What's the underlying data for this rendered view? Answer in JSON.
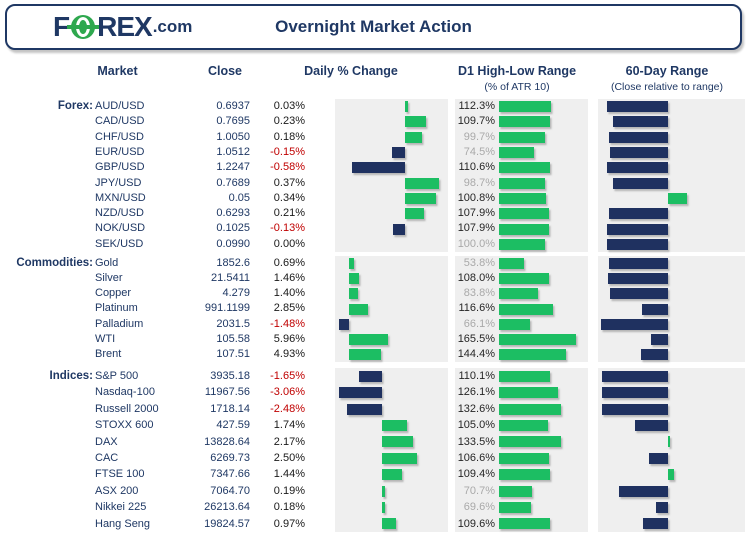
{
  "header": {
    "logo_f": "F",
    "logo_rex": "REX",
    "logo_tld": ".com",
    "title": "Overnight Market Action"
  },
  "columns": {
    "market": "Market",
    "close": "Close",
    "daily_change": "Daily % Change",
    "d1_range": "D1 High-Low Range",
    "d1_sub": "(% of ATR 10)",
    "sixty_range": "60-Day Range",
    "sixty_sub": "(Close relative to range)"
  },
  "colors": {
    "navy": "#1F3864",
    "bar_navy": "#1F3160",
    "green": "#1CBE63",
    "logo_green": "#2EA84E",
    "red": "#C00000",
    "gray_text": "#A9A9A9",
    "dark_text": "#262626",
    "panel": "#EFEFEF",
    "text_dark": "#1A1A1A"
  },
  "chart_data": {
    "type": "table",
    "title": "Overnight Market Action",
    "legend_position": "none",
    "grid": false,
    "d1_axis": {
      "min": 0,
      "max": 185
    },
    "sixty_axis": {
      "min": -1.05,
      "max": 1.17
    },
    "sections": [
      {
        "label": "Forex:",
        "daily_axis": {
          "min": -0.77,
          "max": 0.47
        },
        "rows": [
          {
            "market": "AUD/USD",
            "close": "0.6937",
            "change": 0.03,
            "change_label": "0.03%",
            "d1": 112.3,
            "d1_label": "112.3%",
            "range60": -0.92
          },
          {
            "market": "CAD/USD",
            "close": "0.7695",
            "change": 0.23,
            "change_label": "0.23%",
            "d1": 109.7,
            "d1_label": "109.7%",
            "range60": -0.82
          },
          {
            "market": "CHF/USD",
            "close": "1.0050",
            "change": 0.18,
            "change_label": "0.18%",
            "d1": 99.7,
            "d1_label": "99.7%",
            "range60": -0.88
          },
          {
            "market": "EUR/USD",
            "close": "1.0512",
            "change": -0.15,
            "change_label": "-0.15%",
            "d1": 74.5,
            "d1_label": "74.5%",
            "range60": -0.87
          },
          {
            "market": "GBP/USD",
            "close": "1.2247",
            "change": -0.58,
            "change_label": "-0.58%",
            "d1": 110.6,
            "d1_label": "110.6%",
            "range60": -0.91
          },
          {
            "market": "JPY/USD",
            "close": "0.7689",
            "change": 0.37,
            "change_label": "0.37%",
            "d1": 98.7,
            "d1_label": "98.7%",
            "range60": -0.83
          },
          {
            "market": "MXN/USD",
            "close": "0.05",
            "change": 0.34,
            "change_label": "0.34%",
            "d1": 100.8,
            "d1_label": "100.8%",
            "range60": 0.29
          },
          {
            "market": "NZD/USD",
            "close": "0.6293",
            "change": 0.21,
            "change_label": "0.21%",
            "d1": 107.9,
            "d1_label": "107.9%",
            "range60": -0.89
          },
          {
            "market": "NOK/USD",
            "close": "0.1025",
            "change": -0.13,
            "change_label": "-0.13%",
            "d1": 107.9,
            "d1_label": "107.9%",
            "range60": -0.92
          },
          {
            "market": "SEK/USD",
            "close": "0.0990",
            "change": 0.0,
            "change_label": "0.00%",
            "d1": 100.0,
            "d1_label": "100.0%",
            "range60": -0.92
          }
        ]
      },
      {
        "label": "Commodities:",
        "daily_axis": {
          "min": -2.14,
          "max": 15.1
        },
        "rows": [
          {
            "market": "Gold",
            "close": "1852.6",
            "change": 0.69,
            "change_label": "0.69%",
            "d1": 53.8,
            "d1_label": "53.8%",
            "range60": -0.89
          },
          {
            "market": "Silver",
            "close": "21.5411",
            "change": 1.46,
            "change_label": "1.46%",
            "d1": 108.0,
            "d1_label": "108.0%",
            "range60": -0.9
          },
          {
            "market": "Copper",
            "close": "4.279",
            "change": 1.4,
            "change_label": "1.40%",
            "d1": 83.8,
            "d1_label": "83.8%",
            "range60": -0.87
          },
          {
            "market": "Platinum",
            "close": "991.1199",
            "change": 2.85,
            "change_label": "2.85%",
            "d1": 116.6,
            "d1_label": "116.6%",
            "range60": -0.39
          },
          {
            "market": "Palladium",
            "close": "2031.5",
            "change": -1.48,
            "change_label": "-1.48%",
            "d1": 66.1,
            "d1_label": "66.1%",
            "range60": -1.0
          },
          {
            "market": "WTI",
            "close": "105.58",
            "change": 5.96,
            "change_label": "5.96%",
            "d1": 165.5,
            "d1_label": "165.5%",
            "range60": -0.25
          },
          {
            "market": "Brent",
            "close": "107.51",
            "change": 4.93,
            "change_label": "4.93%",
            "d1": 144.4,
            "d1_label": "144.4%",
            "range60": -0.4
          }
        ]
      },
      {
        "label": "Indices:",
        "daily_axis": {
          "min": -3.31,
          "max": 4.65
        },
        "rows": [
          {
            "market": "S&P 500",
            "close": "3935.18",
            "change": -1.65,
            "change_label": "-1.65%",
            "d1": 110.1,
            "d1_label": "110.1%",
            "range60": -0.99
          },
          {
            "market": "Nasdaq-100",
            "close": "11967.56",
            "change": -3.06,
            "change_label": "-3.06%",
            "d1": 126.1,
            "d1_label": "126.1%",
            "range60": -0.99
          },
          {
            "market": "Russell 2000",
            "close": "1718.14",
            "change": -2.48,
            "change_label": "-2.48%",
            "d1": 132.6,
            "d1_label": "132.6%",
            "range60": -0.99
          },
          {
            "market": "STOXX 600",
            "close": "427.59",
            "change": 1.74,
            "change_label": "1.74%",
            "d1": 105.0,
            "d1_label": "105.0%",
            "range60": -0.49
          },
          {
            "market": "DAX",
            "close": "13828.64",
            "change": 2.17,
            "change_label": "2.17%",
            "d1": 133.5,
            "d1_label": "133.5%",
            "range60": 0.03
          },
          {
            "market": "CAC",
            "close": "6269.73",
            "change": 2.5,
            "change_label": "2.50%",
            "d1": 106.6,
            "d1_label": "106.6%",
            "range60": -0.28
          },
          {
            "market": "FTSE 100",
            "close": "7347.66",
            "change": 1.44,
            "change_label": "1.44%",
            "d1": 109.4,
            "d1_label": "109.4%",
            "range60": 0.1
          },
          {
            "market": "ASX 200",
            "close": "7064.70",
            "change": 0.19,
            "change_label": "0.19%",
            "d1": 70.7,
            "d1_label": "70.7%",
            "range60": -0.74
          },
          {
            "market": "Nikkei 225",
            "close": "26213.64",
            "change": 0.18,
            "change_label": "0.18%",
            "d1": 69.6,
            "d1_label": "69.6%",
            "range60": -0.18
          },
          {
            "market": "Hang Seng",
            "close": "19824.57",
            "change": 0.97,
            "change_label": "0.97%",
            "d1": 109.6,
            "d1_label": "109.6%",
            "range60": -0.37
          }
        ]
      }
    ]
  }
}
